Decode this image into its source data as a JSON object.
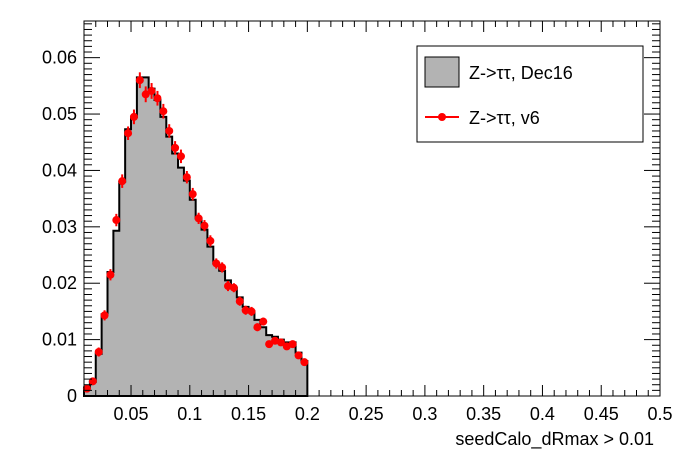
{
  "chart_data": {
    "type": "histogram",
    "title": "",
    "xlabel": "seedCalo_dRmax > 0.01",
    "ylabel": "",
    "xlim": [
      0.01,
      0.5
    ],
    "ylim": [
      0,
      0.0665
    ],
    "x_ticks": [
      {
        "value": 0.05,
        "label": "0.05"
      },
      {
        "value": 0.1,
        "label": "0.1"
      },
      {
        "value": 0.15,
        "label": "0.15"
      },
      {
        "value": 0.2,
        "label": "0.2"
      },
      {
        "value": 0.25,
        "label": "0.25"
      },
      {
        "value": 0.3,
        "label": "0.3"
      },
      {
        "value": 0.35,
        "label": "0.35"
      },
      {
        "value": 0.4,
        "label": "0.4"
      },
      {
        "value": 0.45,
        "label": "0.45"
      },
      {
        "value": 0.5,
        "label": "0.5"
      }
    ],
    "y_ticks": [
      {
        "value": 0,
        "label": "0"
      },
      {
        "value": 0.01,
        "label": "0.01"
      },
      {
        "value": 0.02,
        "label": "0.02"
      },
      {
        "value": 0.03,
        "label": "0.03"
      },
      {
        "value": 0.04,
        "label": "0.04"
      },
      {
        "value": 0.05,
        "label": "0.05"
      },
      {
        "value": 0.06,
        "label": "0.06"
      }
    ],
    "grid": false,
    "legend_position": "top-right",
    "bin_edges": [
      0.01,
      0.015,
      0.02,
      0.025,
      0.03,
      0.035,
      0.04,
      0.045,
      0.05,
      0.055,
      0.06,
      0.065,
      0.07,
      0.075,
      0.08,
      0.085,
      0.09,
      0.095,
      0.1,
      0.105,
      0.11,
      0.115,
      0.12,
      0.125,
      0.13,
      0.135,
      0.14,
      0.145,
      0.15,
      0.155,
      0.16,
      0.165,
      0.17,
      0.175,
      0.18,
      0.185,
      0.19,
      0.195,
      0.2
    ],
    "series": [
      {
        "name": "Z->ττ, Dec16",
        "style": "filled-histogram",
        "fill_color": "#b3b3b3",
        "line_color": "#000000",
        "values": [
          0.0015,
          0.0025,
          0.0075,
          0.0145,
          0.022,
          0.0293,
          0.038,
          0.0473,
          0.0495,
          0.0565,
          0.0565,
          0.0545,
          0.0525,
          0.0495,
          0.046,
          0.043,
          0.0405,
          0.0382,
          0.0348,
          0.0315,
          0.0295,
          0.0265,
          0.0235,
          0.0222,
          0.0205,
          0.0192,
          0.0175,
          0.0158,
          0.015,
          0.0135,
          0.0122,
          0.0108,
          0.0105,
          0.01,
          0.0095,
          0.0095,
          0.0077,
          0.0062
        ]
      },
      {
        "name": "Z->ττ, v6",
        "style": "points-with-errors",
        "color": "#ff0000",
        "values": [
          0.0013,
          0.0026,
          0.0078,
          0.0143,
          0.0215,
          0.0312,
          0.0381,
          0.0466,
          0.0495,
          0.056,
          0.0535,
          0.0541,
          0.0528,
          0.0505,
          0.047,
          0.044,
          0.0425,
          0.0388,
          0.0358,
          0.0315,
          0.0302,
          0.0275,
          0.0235,
          0.0228,
          0.0195,
          0.0192,
          0.0168,
          0.0152,
          0.015,
          0.0122,
          0.0132,
          0.0092,
          0.0098,
          0.0095,
          0.0088,
          0.0092,
          0.0072,
          0.006
        ],
        "errors": [
          0.0005,
          0.0006,
          0.0008,
          0.0009,
          0.001,
          0.0011,
          0.0012,
          0.0012,
          0.0013,
          0.0014,
          0.0014,
          0.0014,
          0.0013,
          0.0013,
          0.0012,
          0.0012,
          0.0012,
          0.0011,
          0.0011,
          0.001,
          0.001,
          0.001,
          0.0009,
          0.0009,
          0.0009,
          0.0008,
          0.0008,
          0.0008,
          0.0008,
          0.0007,
          0.0007,
          0.0006,
          0.0006,
          0.0006,
          0.0006,
          0.0006,
          0.0006,
          0.0005
        ]
      }
    ]
  }
}
